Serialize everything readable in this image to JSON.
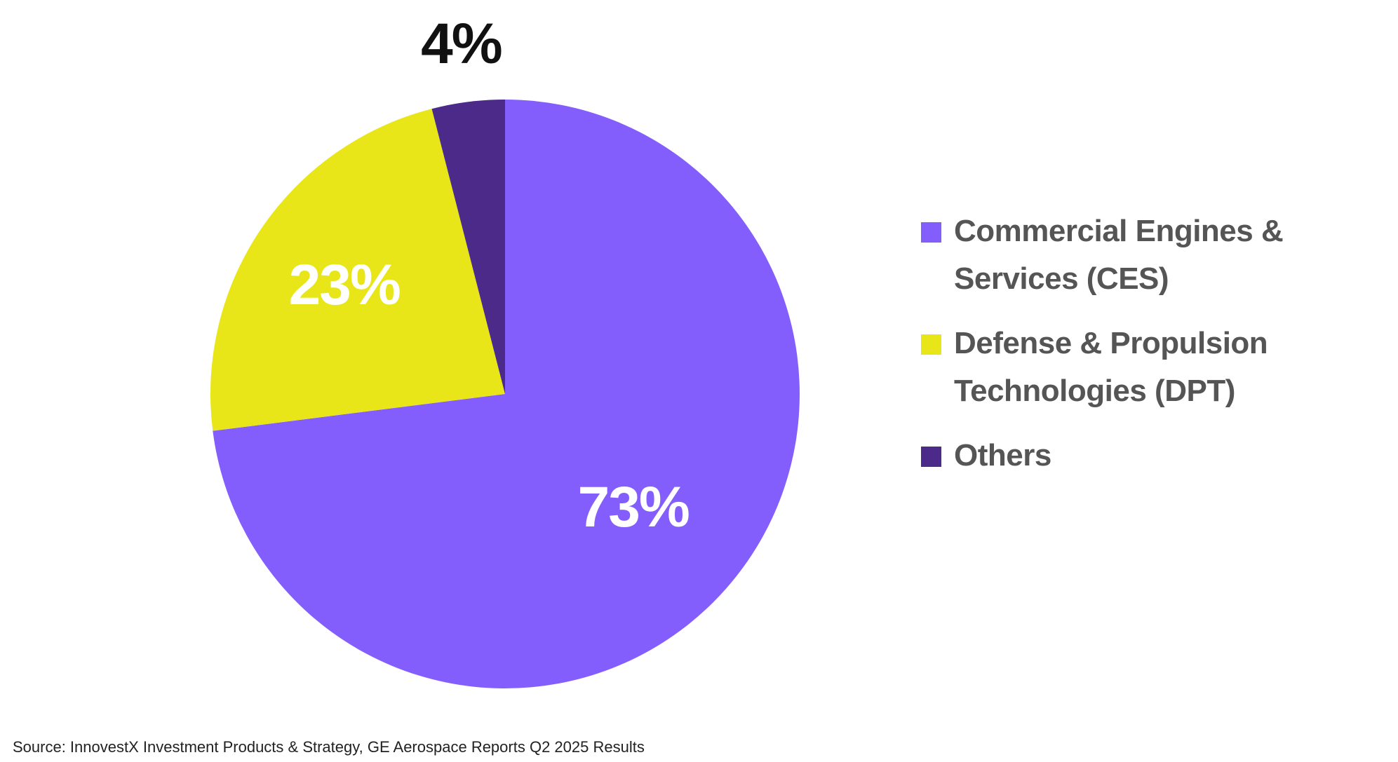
{
  "chart_data": {
    "type": "pie",
    "title": "",
    "slices": [
      {
        "name": "Commercial Engines & Services (CES)",
        "value": 73,
        "label": "73%",
        "color": "#845EFC",
        "label_color": "#FFFFFF"
      },
      {
        "name": "Defense & Propulsion Technologies (DPT)",
        "value": 23,
        "label": "23%",
        "color": "#E8E619",
        "label_color": "#FFFFFF"
      },
      {
        "name": "Others",
        "value": 4,
        "label": "4%",
        "color": "#4B2A8A",
        "label_color": "#111111"
      }
    ],
    "start_angle_deg": 0,
    "direction": "clockwise",
    "legend_position": "right"
  },
  "legend": {
    "items": [
      {
        "label": "Commercial Engines & Services (CES)",
        "color": "#845EFC"
      },
      {
        "label": "Defense & Propulsion Technologies (DPT)",
        "color": "#E8E619"
      },
      {
        "label": "Others",
        "color": "#4B2A8A"
      }
    ]
  },
  "footer": {
    "source": "Source: InnovestX Investment Products & Strategy, GE Aerospace Reports Q2 2025 Results"
  }
}
